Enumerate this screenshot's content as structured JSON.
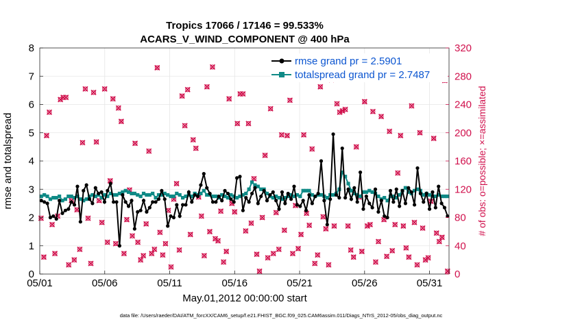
{
  "chart_data": {
    "type": "line",
    "title": "Tropics 17066 / 17146 = 99.533%",
    "subtitle": "ACARS_V_WIND_COMPONENT @ 400 hPa",
    "xlabel": "May.01,2012 00:00:00 start",
    "ylabel": "rmse and totalspread",
    "ylabel_right": "# of obs: o=possible; ×=assimilated",
    "xlim": [
      0,
      31.5
    ],
    "ylim": [
      0,
      8
    ],
    "ylim_right": [
      0,
      320
    ],
    "x_tick_labels": [
      "05/01",
      "05/06",
      "05/11",
      "05/16",
      "05/21",
      "05/26",
      "05/31"
    ],
    "x_tick_values": [
      0,
      5,
      10,
      15,
      20,
      25,
      30
    ],
    "y_tick_labels": [
      "0",
      "1",
      "2",
      "3",
      "4",
      "5",
      "6",
      "7",
      "8"
    ],
    "y_right_tick_labels": [
      "0",
      "40",
      "80",
      "120",
      "160",
      "200",
      "240",
      "280",
      "320"
    ],
    "footnote": "data file: /Users/raeder/DAI/ATM_forcXX/CAM6_setup/f.e21.FHIST_BGC.f09_025.CAM6assim.011/Diags_NTrS_2012-05/obs_diag_output.nc",
    "series": [
      {
        "name": "rmse grand pr = 2.5901",
        "color": "#000000",
        "axis": "left",
        "values": [
          2.6,
          2.55,
          2.5,
          2.0,
          2.05,
          1.95,
          2.6,
          2.15,
          2.25,
          2.3,
          2.55,
          2.45,
          3.1,
          1.85,
          2.95,
          3.15,
          2.65,
          2.5,
          3.05,
          2.85,
          2.9,
          2.55,
          2.95,
          3.2,
          2.55,
          2.55,
          1.0,
          2.8,
          2.55,
          2.4,
          2.6,
          1.6,
          2.2,
          2.25,
          2.6,
          2.2,
          2.35,
          2.55,
          2.55,
          2.65,
          2.95,
          2.65,
          1.7,
          2.05,
          2.0,
          2.45,
          2.05,
          2.45,
          2.45,
          2.9,
          2.55,
          2.8,
          2.75,
          3.15,
          3.55,
          3.05,
          2.85,
          2.55,
          2.55,
          2.75,
          2.6,
          2.95,
          2.85,
          2.65,
          2.55,
          3.4,
          3.45,
          2.25,
          2.7,
          2.55,
          2.85,
          3.05,
          2.5,
          2.75,
          2.95,
          2.6,
          2.8,
          2.9,
          2.6,
          2.3,
          2.9,
          2.5,
          2.85,
          2.65,
          3.1,
          2.45,
          2.4,
          2.6,
          2.25,
          2.8,
          2.5,
          2.75,
          2.85,
          4.0,
          2.6,
          1.75,
          2.65,
          4.95,
          2.8,
          2.7,
          4.45,
          2.7,
          3.0,
          2.65,
          3.05,
          2.55,
          3.6,
          2.3,
          2.75,
          2.5,
          2.35,
          3.0,
          2.2,
          2.6,
          2.05,
          2.0,
          2.95,
          2.55,
          3.0,
          2.4,
          2.95,
          2.5,
          3.05,
          2.9,
          2.45,
          3.75,
          2.85,
          2.55,
          2.85,
          2.3,
          2.9,
          2.35,
          3.1,
          2.5,
          2.35,
          2.05
        ]
      },
      {
        "name": "totalspread grand pr = 2.7487",
        "color": "#0f8a86",
        "axis": "left",
        "values": [
          2.75,
          2.8,
          2.75,
          2.65,
          2.7,
          2.7,
          2.75,
          2.6,
          2.65,
          2.75,
          2.75,
          2.7,
          2.75,
          2.65,
          2.6,
          2.65,
          2.75,
          2.8,
          2.75,
          2.8,
          2.7,
          2.8,
          2.75,
          2.85,
          2.8,
          2.8,
          2.85,
          2.9,
          2.95,
          2.9,
          2.85,
          2.85,
          2.8,
          2.75,
          2.85,
          2.8,
          2.8,
          2.85,
          2.7,
          2.8,
          2.8,
          2.85,
          2.8,
          2.75,
          2.75,
          2.85,
          2.8,
          2.7,
          2.75,
          2.8,
          2.75,
          2.85,
          2.8,
          2.85,
          2.95,
          2.8,
          2.8,
          2.75,
          2.75,
          2.7,
          2.8,
          2.75,
          2.7,
          2.8,
          2.75,
          2.7,
          2.75,
          2.8,
          2.85,
          3.0,
          3.25,
          3.15,
          3.1,
          3.0,
          3.0,
          2.85,
          2.75,
          2.7,
          2.75,
          2.7,
          2.65,
          2.7,
          2.75,
          2.8,
          2.75,
          2.8,
          2.75,
          2.95,
          2.95,
          2.95,
          2.8,
          2.75,
          2.8,
          2.8,
          2.75,
          2.7,
          2.8,
          2.8,
          2.85,
          3.0,
          3.6,
          3.45,
          3.2,
          2.95,
          2.85,
          2.8,
          2.75,
          2.9,
          2.9,
          2.95,
          2.9,
          2.85,
          2.75,
          2.65,
          2.7,
          2.6,
          2.75,
          2.75,
          2.7,
          2.8,
          2.95,
          3.05,
          2.9,
          2.85,
          2.95,
          3.0,
          2.95,
          2.8,
          2.85,
          2.8,
          2.75,
          2.75,
          2.8,
          2.75,
          2.75,
          2.75
        ]
      },
      {
        "name": "obs possible / assimilated",
        "color": "#d0104c",
        "axis": "right",
        "values": [
          79,
          24,
          196,
          229,
          70,
          29,
          82,
          247,
          250,
          250,
          13,
          104,
          20,
          91,
          35,
          186,
          262,
          79,
          15,
          257,
          187,
          104,
          73,
          262,
          45,
          132,
          248,
          43,
          235,
          216,
          29,
          77,
          119,
          54,
          185,
          45,
          20,
          26,
          71,
          174,
          29,
          35,
          292,
          59,
          27,
          43,
          90,
          10,
          106,
          128,
          34,
          252,
          210,
          261,
          56,
          190,
          178,
          109,
          82,
          26,
          265,
          60,
          293,
          50,
          47,
          89,
          17,
          32,
          248,
          100,
          88,
          213,
          255,
          255,
          61,
          213,
          72,
          135,
          28,
          4,
          80,
          168,
          23,
          234,
          29,
          87,
          35,
          197,
          62,
          196,
          246,
          29,
          97,
          36,
          56,
          197,
          86,
          69,
          177,
          15,
          27,
          265,
          81,
          64,
          13,
          275,
          68,
          241,
          229,
          231,
          233,
          68,
          34,
          24,
          180,
          109,
          32,
          244,
          68,
          70,
          230,
          17,
          46,
          223,
          77,
          25,
          202,
          33,
          70,
          143,
          196,
          68,
          37,
          24,
          238,
          73,
          13,
          200,
          65,
          20,
          23,
          103,
          192,
          58,
          46,
          52,
          274,
          4
        ]
      }
    ]
  }
}
